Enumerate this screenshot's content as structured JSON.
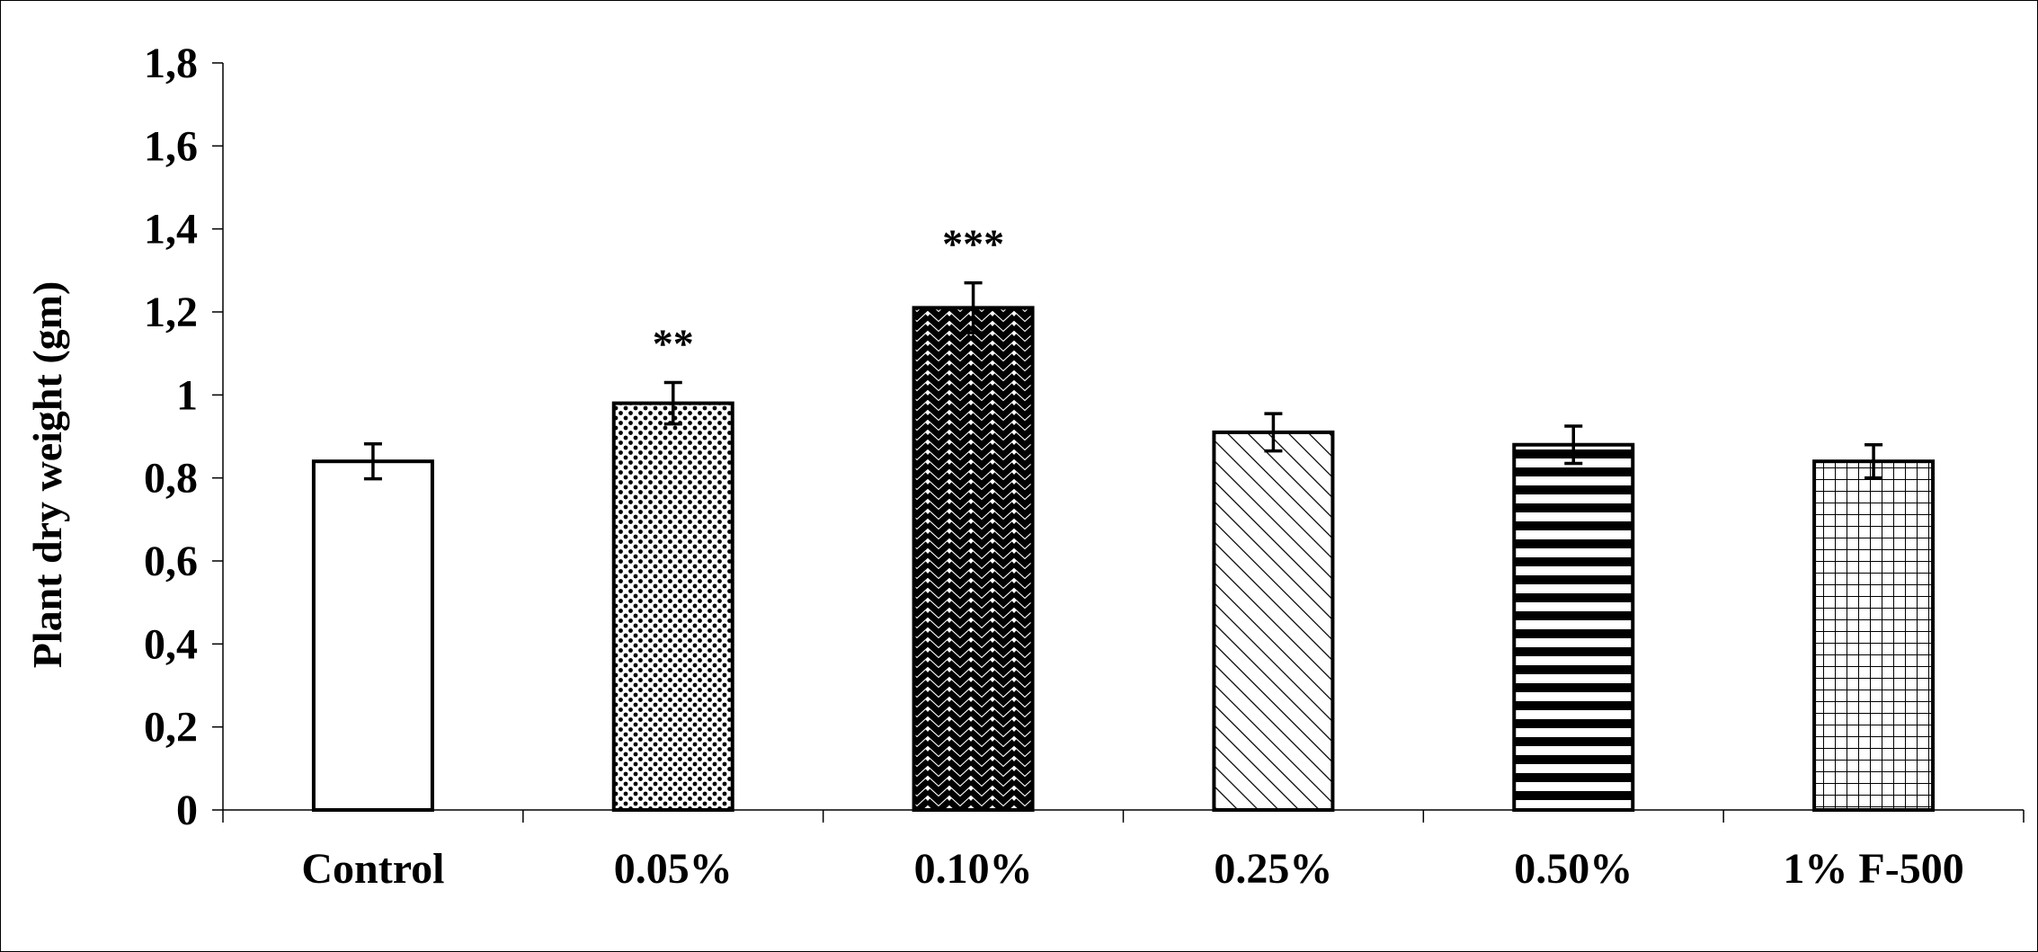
{
  "chart_data": {
    "type": "bar",
    "title": "",
    "xlabel": "",
    "ylabel": "Plant dry weight (gm)",
    "ylim": [
      0,
      1.8
    ],
    "yticks": [
      0,
      0.2,
      0.4,
      0.6,
      0.8,
      1.0,
      1.2,
      1.4,
      1.6,
      1.8
    ],
    "ytick_labels": [
      "0",
      "0,2",
      "0,4",
      "0,6",
      "0,8",
      "1",
      "1,2",
      "1,4",
      "1,6",
      "1,8"
    ],
    "categories": [
      "Control",
      "0.05%",
      "0.10%",
      "0.25%",
      "0.50%",
      "1% F-500"
    ],
    "values": [
      0.84,
      0.98,
      1.21,
      0.91,
      0.88,
      0.84
    ],
    "errors": [
      0.042,
      0.05,
      0.06,
      0.045,
      0.045,
      0.04
    ],
    "annotations": [
      "",
      "**",
      "***",
      "",
      "",
      ""
    ],
    "fill_patterns": [
      "none",
      "dots",
      "zigzag",
      "diagonal",
      "horizontal",
      "grid"
    ],
    "grid": false,
    "legend": "none",
    "colors": {
      "bar_stroke": "#000000",
      "background": "#ffffff"
    }
  }
}
